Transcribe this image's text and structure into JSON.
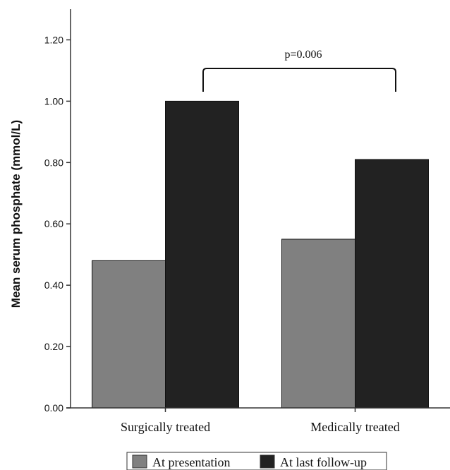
{
  "chart_data": {
    "type": "bar",
    "categories": [
      "Surgically treated",
      "Medically treated"
    ],
    "series": [
      {
        "name": "At presentation",
        "values": [
          0.48,
          0.55
        ],
        "color": "#808080"
      },
      {
        "name": "At last follow-up",
        "values": [
          1.0,
          0.81
        ],
        "color": "#222222"
      }
    ],
    "ylabel": "Mean serum phosphate (mmol/L)",
    "xlabel": "",
    "ylim": [
      0,
      1.3
    ],
    "yticks": [
      "0.00",
      "0.20",
      "0.40",
      "0.60",
      "0.80",
      "1.00",
      "1.20"
    ],
    "annotation": "p=0.006",
    "legend_position": "bottom-center",
    "grid": false
  }
}
